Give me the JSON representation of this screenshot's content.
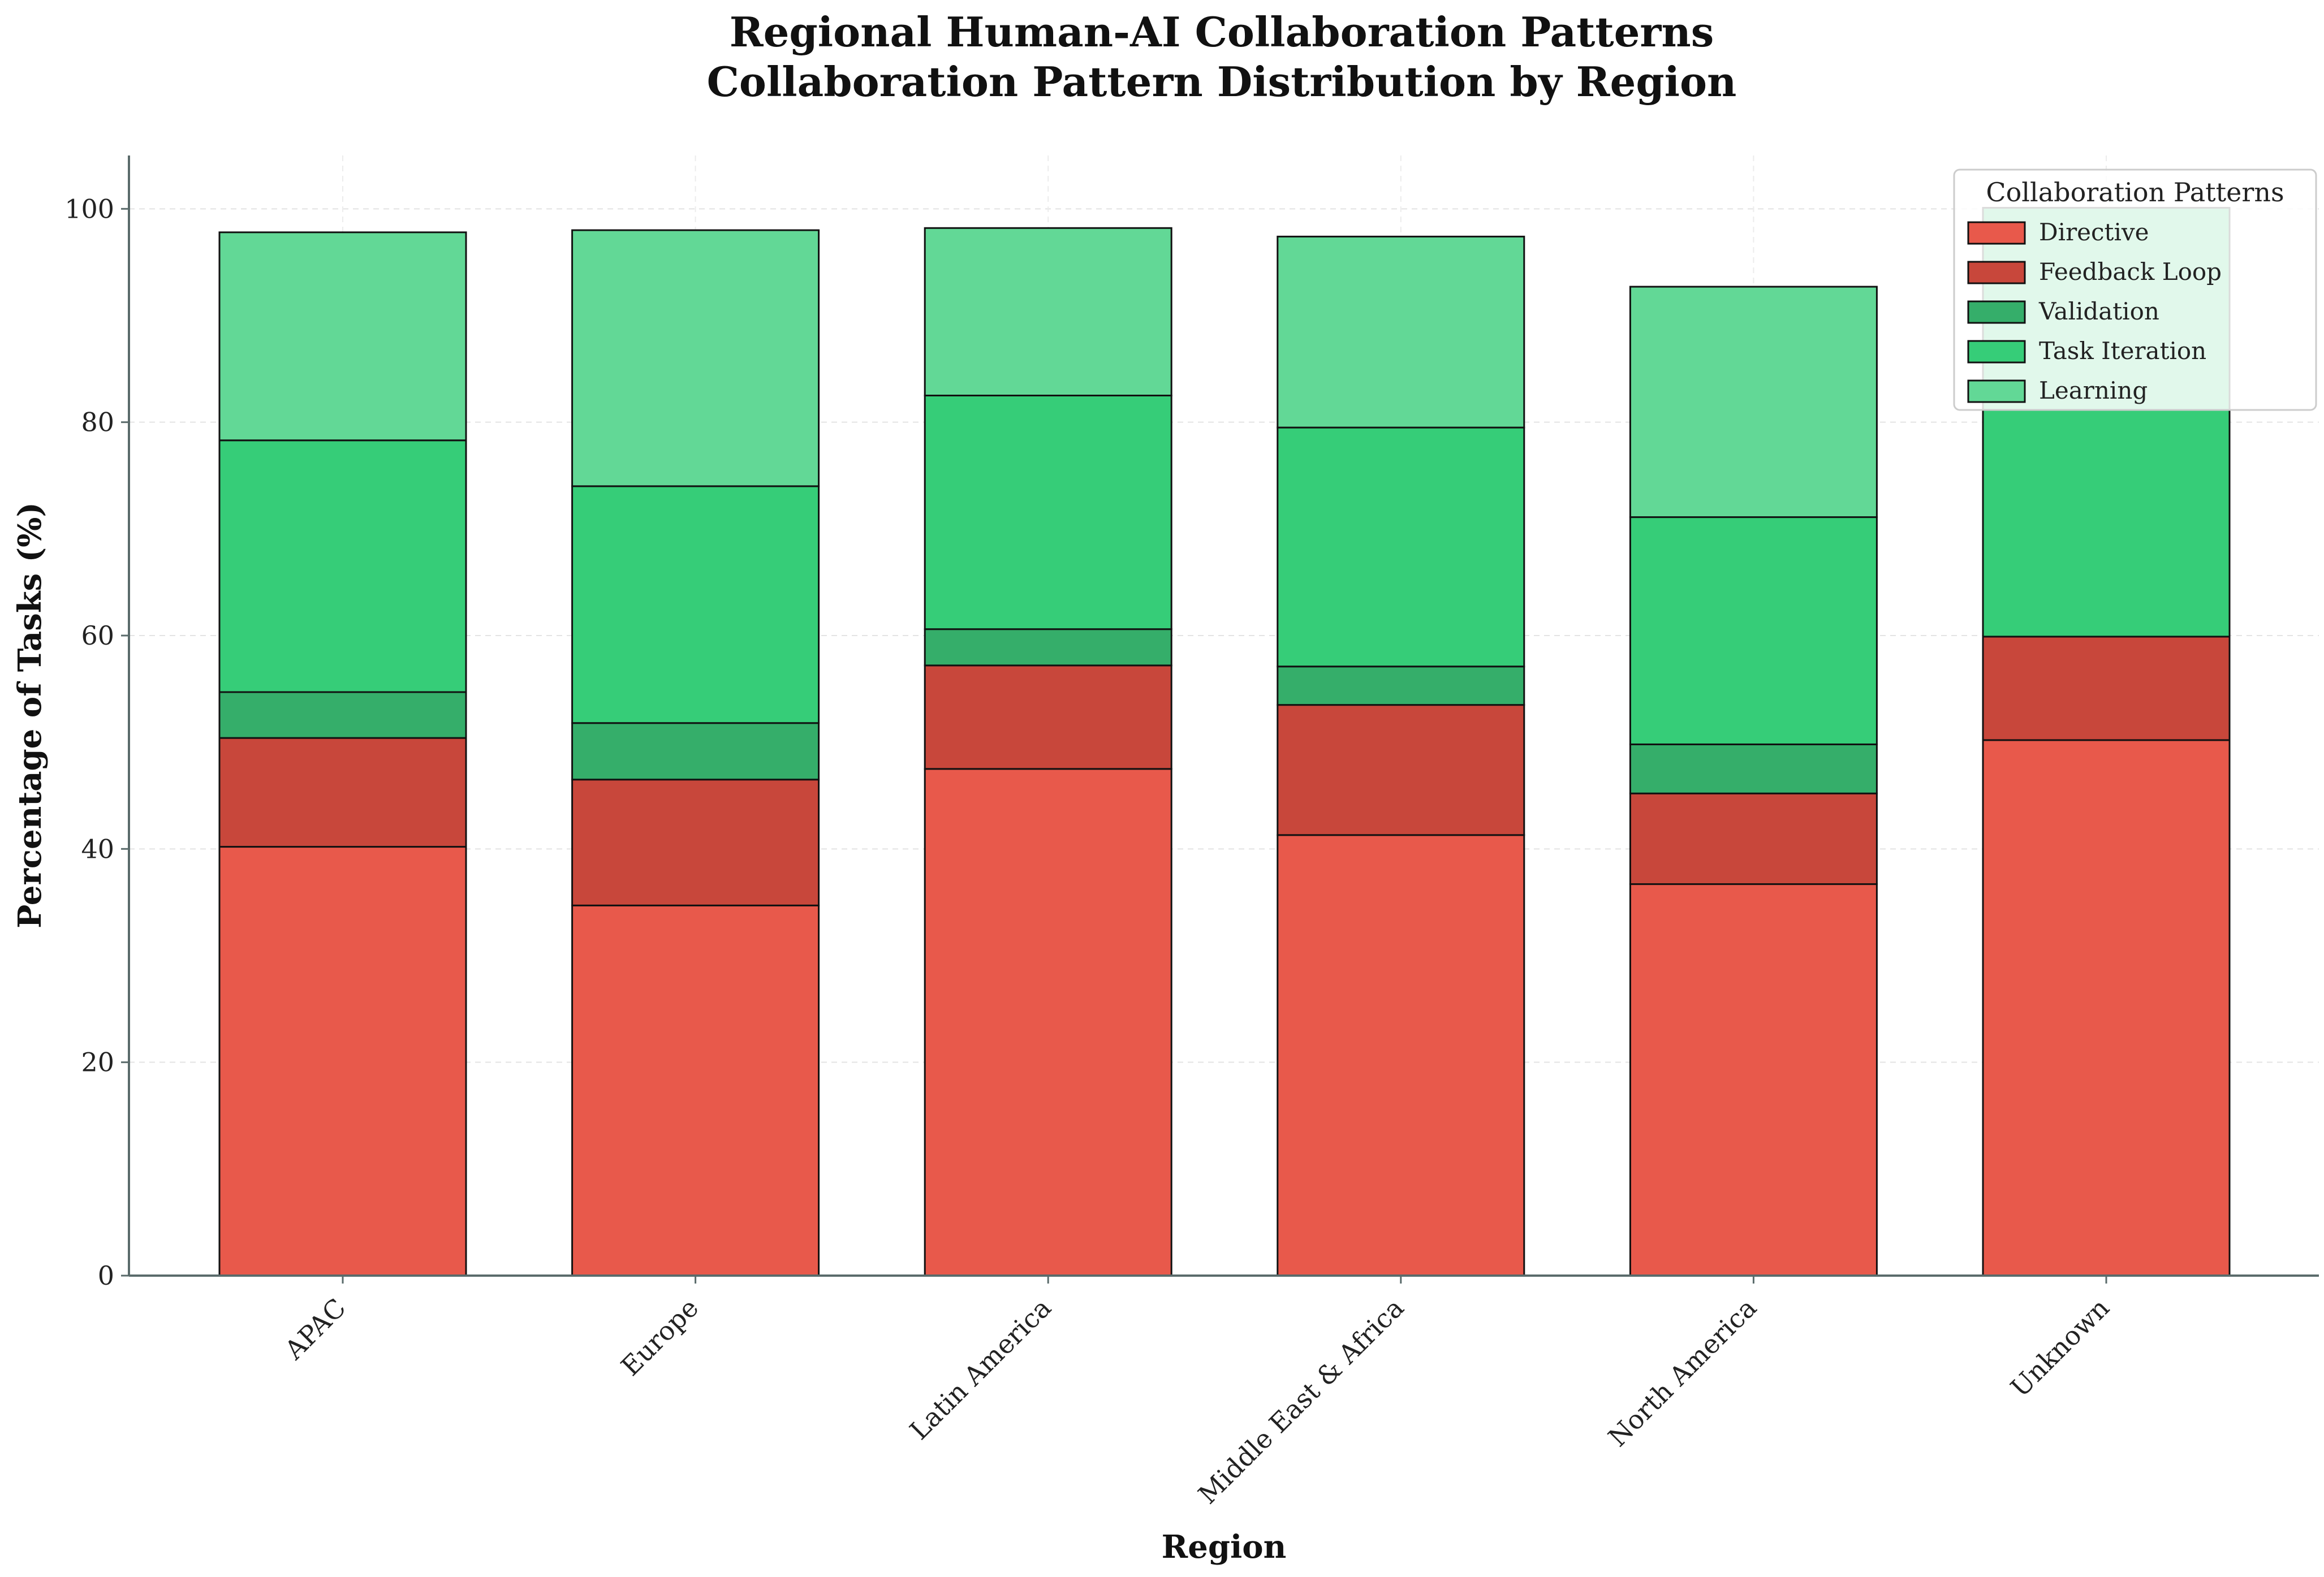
{
  "chart_data": {
    "type": "bar",
    "stacked": true,
    "title": "Regional Human-AI Collaboration Patterns",
    "subtitle": "Collaboration Pattern Distribution by Region",
    "xlabel": "Region",
    "ylabel": "Percentage of Tasks (%)",
    "ylim": [
      0,
      105
    ],
    "yticks": [
      0,
      20,
      40,
      60,
      80,
      100
    ],
    "grid": true,
    "legend": {
      "title": "Collaboration Patterns",
      "position": "top-right"
    },
    "categories": [
      "APAC",
      "Europe",
      "Latin America",
      "Middle East & Africa",
      "North America",
      "Unknown"
    ],
    "series": [
      {
        "name": "Directive",
        "color": "#e8594b",
        "values": [
          40.2,
          34.7,
          47.5,
          41.3,
          36.7,
          50.2
        ]
      },
      {
        "name": "Feedback Loop",
        "color": "#c8473b",
        "values": [
          10.2,
          11.8,
          9.7,
          12.2,
          8.5,
          9.7
        ]
      },
      {
        "name": "Validation",
        "color": "#35ae6a",
        "values": [
          4.3,
          5.3,
          3.4,
          3.6,
          4.6,
          0.0
        ]
      },
      {
        "name": "Task Iteration",
        "color": "#36cd78",
        "values": [
          23.6,
          22.2,
          21.9,
          22.4,
          21.3,
          40.2
        ]
      },
      {
        "name": "Learning",
        "color": "#62d896",
        "values": [
          19.5,
          24.0,
          15.7,
          17.9,
          21.6,
          0.0
        ]
      }
    ]
  }
}
